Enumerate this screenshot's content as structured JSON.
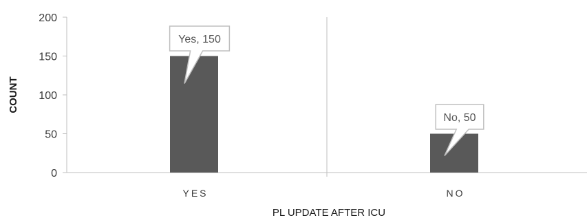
{
  "chart_data": {
    "type": "bar",
    "categories": [
      "YES",
      "NO"
    ],
    "values": [
      150,
      50
    ],
    "data_labels": [
      "Yes, 150",
      "No, 50"
    ],
    "title": "",
    "xlabel": "PL UPDATE AFTER ICU",
    "ylabel": "COUNT",
    "ylim": [
      0,
      200
    ],
    "yticks": [
      0,
      50,
      100,
      150,
      200
    ],
    "grid": false,
    "legend": "none",
    "colors": {
      "bar": "#595959",
      "axis": "#bfbfbf",
      "callout_border": "#bfbfbf",
      "callout_text": "#555555"
    }
  }
}
